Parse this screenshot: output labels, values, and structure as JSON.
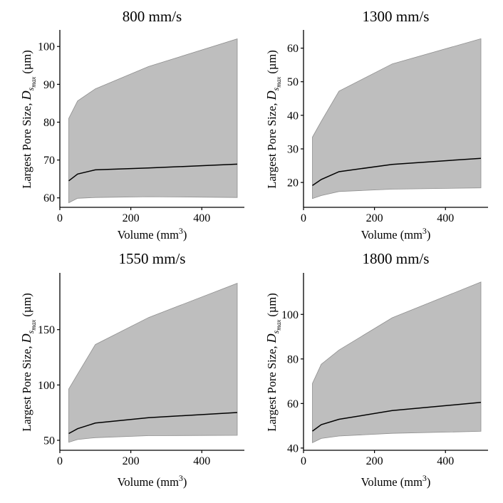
{
  "chart_data": [
    {
      "type": "area",
      "title": "800 mm/s",
      "xlabel": "Volume (mm3)",
      "xlabel_main": "Volume (mm",
      "xlabel_sup": "3",
      "xlabel_close": ")",
      "ylabel": "Largest Pore Size, D_smax (µm)",
      "ylabel_main": "Largest Pore Size, ",
      "ylabel_symbol": "D",
      "ylabel_sub": "s",
      "ylabel_subsub": "max",
      "ylabel_unit": " (µm)",
      "xlim": [
        0,
        520
      ],
      "ylim": [
        57.5,
        104
      ],
      "xticks": [
        0,
        200,
        400
      ],
      "yticks": [
        60,
        70,
        80,
        90,
        100
      ],
      "x": [
        25,
        50,
        100,
        250,
        500
      ],
      "series": [
        {
          "name": "mean",
          "values": [
            64.5,
            66.3,
            67.4,
            67.9,
            68.9
          ]
        },
        {
          "name": "lower",
          "values": [
            58.7,
            59.9,
            60.1,
            60.3,
            60.1
          ]
        },
        {
          "name": "upper",
          "values": [
            81,
            85.6,
            88.8,
            94.7,
            102
          ]
        }
      ]
    },
    {
      "type": "area",
      "title": "1300 mm/s",
      "xlabel": "Volume (mm3)",
      "xlabel_main": "Volume (mm",
      "xlabel_sup": "3",
      "xlabel_close": ")",
      "ylabel": "Largest Pore Size, D_smax (µm)",
      "ylabel_main": "Largest Pore Size, ",
      "ylabel_symbol": "D",
      "ylabel_sub": "s",
      "ylabel_subsub": "max",
      "ylabel_unit": " (µm)",
      "xlim": [
        0,
        520
      ],
      "ylim": [
        12.6,
        65
      ],
      "xticks": [
        0,
        200,
        400
      ],
      "yticks": [
        20,
        30,
        40,
        50,
        60
      ],
      "x": [
        25,
        50,
        100,
        250,
        500
      ],
      "series": [
        {
          "name": "mean",
          "values": [
            19.1,
            20.9,
            23.2,
            25.4,
            27.2
          ]
        },
        {
          "name": "lower",
          "values": [
            15.2,
            16.1,
            17.3,
            18,
            18.4
          ]
        },
        {
          "name": "upper",
          "values": [
            33.5,
            38.2,
            47.2,
            55.3,
            62.8
          ]
        }
      ]
    },
    {
      "type": "area",
      "title": "1550 mm/s",
      "xlabel": "Volume (mm3)",
      "xlabel_main": "Volume (mm",
      "xlabel_sup": "3",
      "xlabel_close": ")",
      "ylabel": "Largest Pore Size, D_smax (µm)",
      "ylabel_main": "Largest Pore Size, ",
      "ylabel_symbol": "D",
      "ylabel_sub": "s",
      "ylabel_subsub": "max",
      "ylabel_unit": " (µm)",
      "xlim": [
        0,
        520
      ],
      "ylim": [
        41,
        200
      ],
      "xticks": [
        0,
        200,
        400
      ],
      "yticks": [
        50,
        100,
        150
      ],
      "x": [
        25,
        50,
        100,
        250,
        500
      ],
      "series": [
        {
          "name": "mean",
          "values": [
            56.1,
            60.5,
            65.6,
            70.5,
            75.1
          ]
        },
        {
          "name": "lower",
          "values": [
            48.3,
            50.7,
            52.4,
            54.2,
            54.5
          ]
        },
        {
          "name": "upper",
          "values": [
            96.4,
            109.8,
            136.5,
            160.9,
            191.9
          ]
        }
      ]
    },
    {
      "type": "area",
      "title": "1800 mm/s",
      "xlabel": "Volume (mm3)",
      "xlabel_main": "Volume (mm",
      "xlabel_sup": "3",
      "xlabel_close": ")",
      "ylabel": "Largest Pore Size, D_smax (µm)",
      "ylabel_main": "Largest Pore Size, ",
      "ylabel_symbol": "D",
      "ylabel_sub": "s",
      "ylabel_subsub": "max",
      "ylabel_unit": " (µm)",
      "xlim": [
        0,
        520
      ],
      "ylim": [
        39,
        118
      ],
      "xticks": [
        0,
        200,
        400
      ],
      "yticks": [
        40,
        60,
        80,
        100
      ],
      "x": [
        25,
        50,
        100,
        250,
        500
      ],
      "series": [
        {
          "name": "mean",
          "values": [
            47.6,
            50.5,
            52.9,
            56.8,
            60.5
          ]
        },
        {
          "name": "lower",
          "values": [
            42.4,
            44.3,
            45.4,
            46.6,
            47.5
          ]
        },
        {
          "name": "upper",
          "values": [
            69,
            77.6,
            84,
            98.5,
            114.5
          ]
        }
      ]
    }
  ]
}
